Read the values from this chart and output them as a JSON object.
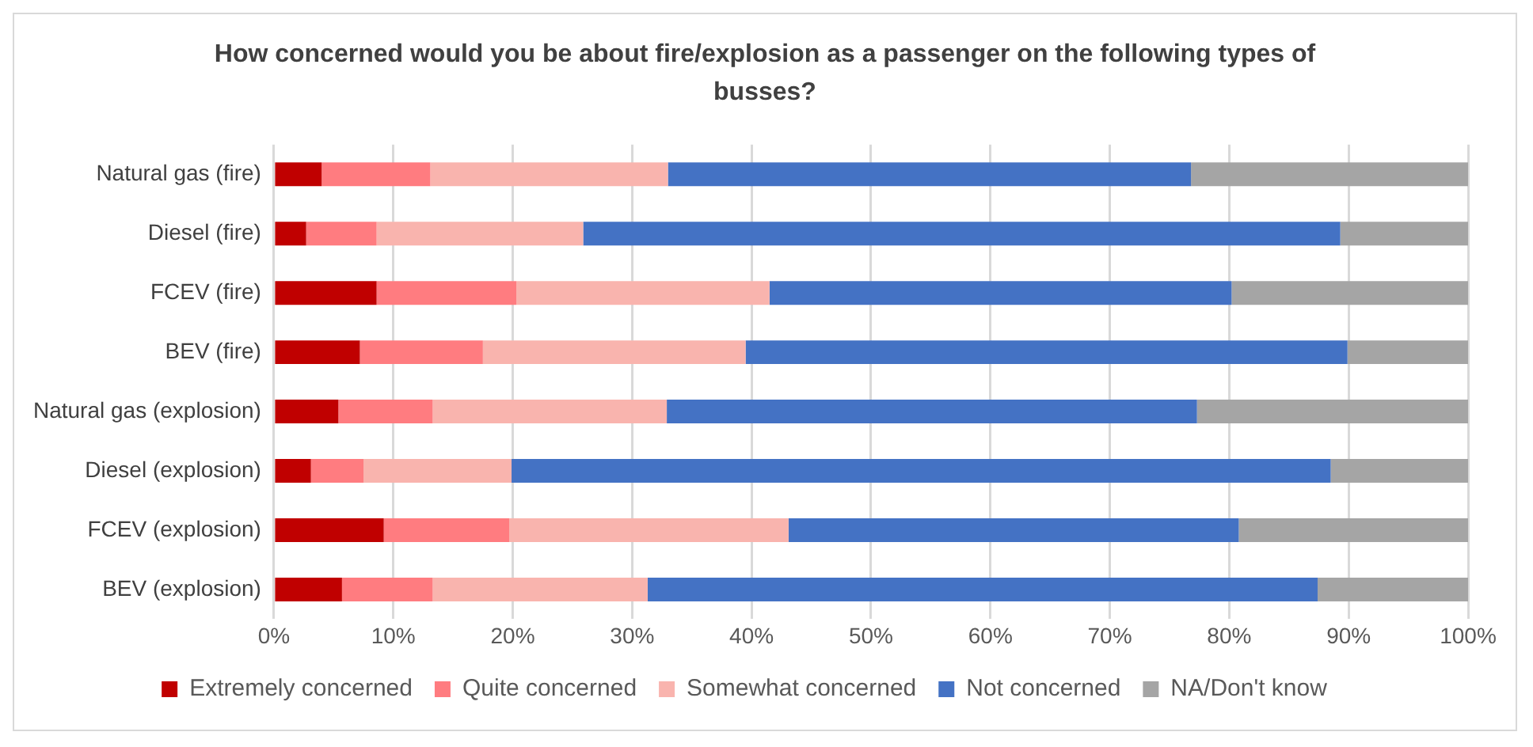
{
  "chart_data": {
    "type": "bar",
    "orientation": "horizontal",
    "stacked": true,
    "title": "How concerned would you be about fire/explosion as a passenger on the following types of busses?",
    "categories": [
      "Natural gas (fire)",
      "Diesel (fire)",
      "FCEV (fire)",
      "BEV (fire)",
      "Natural gas (explosion)",
      "Diesel (explosion)",
      "FCEV (explosion)",
      "BEV (explosion)"
    ],
    "series": [
      {
        "name": "Extremely concerned",
        "color": "#c00000",
        "values": [
          4.0,
          2.7,
          8.6,
          7.2,
          5.4,
          3.1,
          9.2,
          5.7
        ]
      },
      {
        "name": "Quite concerned",
        "color": "#ff7c80",
        "values": [
          9.1,
          5.9,
          11.7,
          10.3,
          7.9,
          4.4,
          10.5,
          7.6
        ]
      },
      {
        "name": "Somewhat concerned",
        "color": "#f9b4ae",
        "values": [
          19.9,
          17.3,
          21.2,
          22.0,
          19.6,
          12.4,
          23.4,
          18.0
        ]
      },
      {
        "name": "Not concerned",
        "color": "#4472c4",
        "values": [
          43.8,
          63.4,
          38.7,
          50.4,
          44.4,
          68.6,
          37.7,
          56.1
        ]
      },
      {
        "name": "NA/Don't know",
        "color": "#a5a5a5",
        "values": [
          23.2,
          10.7,
          19.8,
          10.1,
          22.7,
          11.5,
          19.2,
          12.6
        ]
      }
    ],
    "xlim": [
      0,
      100
    ],
    "xticks": [
      {
        "value": 0,
        "label": "0%"
      },
      {
        "value": 10,
        "label": "10%"
      },
      {
        "value": 20,
        "label": "20%"
      },
      {
        "value": 30,
        "label": "30%"
      },
      {
        "value": 40,
        "label": "40%"
      },
      {
        "value": 50,
        "label": "50%"
      },
      {
        "value": 60,
        "label": "60%"
      },
      {
        "value": 70,
        "label": "70%"
      },
      {
        "value": 80,
        "label": "80%"
      },
      {
        "value": 90,
        "label": "90%"
      },
      {
        "value": 100,
        "label": "100%"
      }
    ],
    "grid": "x",
    "legend": "bottom"
  }
}
